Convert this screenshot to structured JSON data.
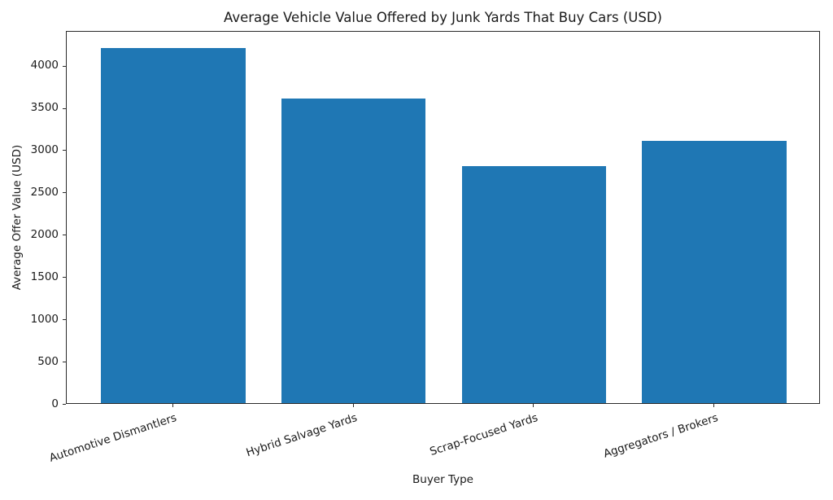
{
  "chart_data": {
    "type": "bar",
    "title": "Average Vehicle Value Offered by Junk Yards That Buy Cars (USD)",
    "xlabel": "Buyer Type",
    "ylabel": "Average Offer Value (USD)",
    "categories": [
      "Automotive Dismantlers",
      "Hybrid Salvage Yards",
      "Scrap-Focused Yards",
      "Aggregators / Brokers"
    ],
    "values": [
      4200,
      3600,
      2800,
      3100
    ],
    "yticks": [
      0,
      500,
      1000,
      1500,
      2000,
      2500,
      3000,
      3500,
      4000
    ],
    "ylim": [
      0,
      4410
    ],
    "bar_color": "#1f77b4",
    "grid": false,
    "legend": null,
    "x_tick_label_rotation_deg": 18
  }
}
